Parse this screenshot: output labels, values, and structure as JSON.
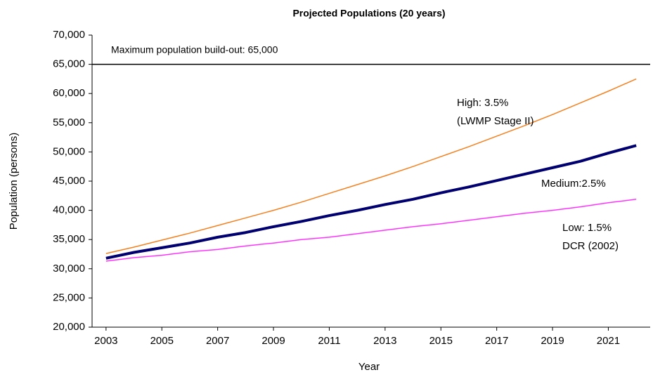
{
  "chart_data": {
    "type": "line",
    "title": "Projected Populations (20 years)",
    "x_label": "Year",
    "y_label": "Population (persons)",
    "x": [
      2003,
      2004,
      2005,
      2006,
      2007,
      2008,
      2009,
      2010,
      2011,
      2012,
      2013,
      2014,
      2015,
      2016,
      2017,
      2018,
      2019,
      2020,
      2021,
      2022
    ],
    "xlim": [
      2002.5,
      2022.5
    ],
    "xticks": [
      2003,
      2005,
      2007,
      2009,
      2011,
      2013,
      2015,
      2017,
      2019,
      2021
    ],
    "ylim": [
      20000,
      70000
    ],
    "yticks": [
      {
        "value": 20000,
        "label": "20,000"
      },
      {
        "value": 25000,
        "label": "25,000"
      },
      {
        "value": 30000,
        "label": "30,000"
      },
      {
        "value": 35000,
        "label": "35,000"
      },
      {
        "value": 40000,
        "label": "40,000"
      },
      {
        "value": 45000,
        "label": "45,000"
      },
      {
        "value": 50000,
        "label": "50,000"
      },
      {
        "value": 55000,
        "label": "55,000"
      },
      {
        "value": 60000,
        "label": "60,000"
      },
      {
        "value": 65000,
        "label": "65,000"
      },
      {
        "value": 70000,
        "label": "70,000"
      }
    ],
    "grid": false,
    "reference_line": {
      "value": 65000,
      "label": "Maximum population build-out: 65,000",
      "color": "#000000"
    },
    "series": [
      {
        "label": [
          "High: 3.5%",
          "(LWMP Stage II)"
        ],
        "color": "#f5801f",
        "width": 1.5,
        "values": [
          32600,
          33700,
          34900,
          36100,
          37400,
          38700,
          40000,
          41400,
          42900,
          44400,
          45900,
          47500,
          49200,
          50900,
          52700,
          54500,
          56400,
          58400,
          60400,
          62500
        ]
      },
      {
        "label": [
          "Medium:2.5%"
        ],
        "color": "#000070",
        "width": 4,
        "values": [
          31800,
          32800,
          33600,
          34400,
          35400,
          36200,
          37200,
          38100,
          39100,
          40000,
          41000,
          41900,
          43000,
          44000,
          45100,
          46200,
          47300,
          48400,
          49800,
          51100
        ]
      },
      {
        "label": [
          "Low: 1.5%",
          "DCR (2002)"
        ],
        "color": "#ff33ff",
        "width": 1.5,
        "values": [
          31300,
          31900,
          32300,
          32900,
          33300,
          33900,
          34400,
          35000,
          35400,
          36000,
          36600,
          37200,
          37700,
          38300,
          38900,
          39500,
          40000,
          40600,
          41300,
          41900
        ]
      }
    ]
  }
}
